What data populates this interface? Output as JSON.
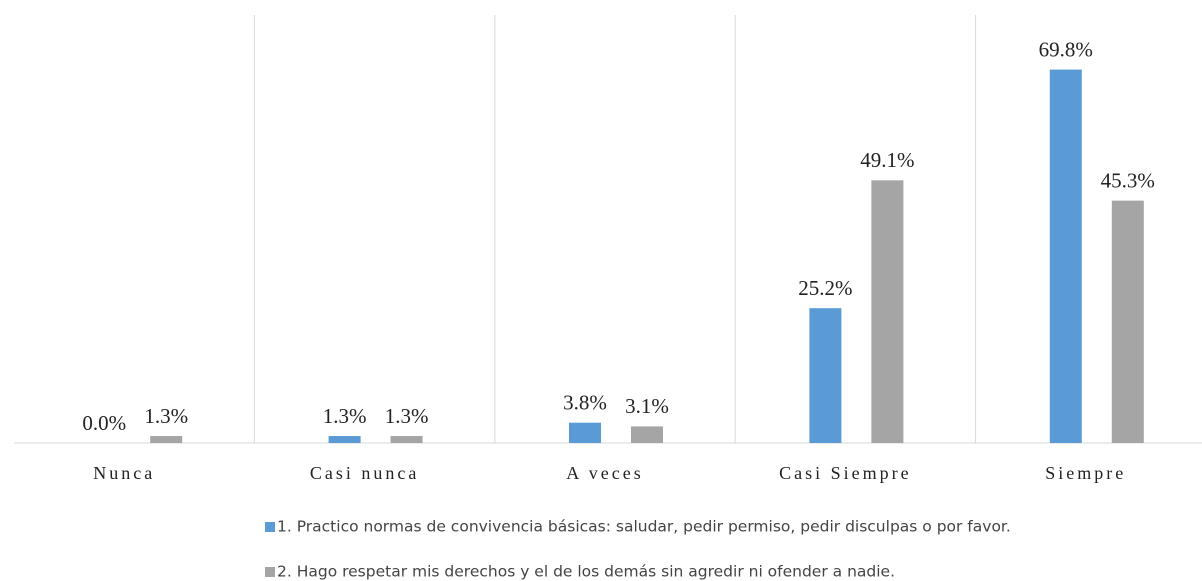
{
  "chart_data": {
    "type": "bar",
    "categories": [
      "Nunca",
      "Casi nunca",
      "A veces",
      "Casi Siempre",
      "Siempre"
    ],
    "series": [
      {
        "name": "1. Practico normas de convivencia básicas: saludar, pedir permiso, pedir disculpas o por favor.",
        "color": "#5b9bd5",
        "values": [
          0,
          1.3,
          3.8,
          25.2,
          69.8
        ],
        "value_labels": [
          "0.0%",
          "1.3%",
          "3.8%",
          "25.2%",
          "69.8%"
        ]
      },
      {
        "name": "2. Hago respetar mis derechos y el de los demás sin agredir ni ofender a nadie.",
        "color": "#a5a5a5",
        "values": [
          1.3,
          1.3,
          3.1,
          49.1,
          45.3
        ],
        "value_labels": [
          "1.3%",
          "1.3%",
          "3.1%",
          "49.1%",
          "45.3%"
        ]
      }
    ],
    "ylim": [
      0,
      80
    ],
    "legend": "bottom"
  }
}
